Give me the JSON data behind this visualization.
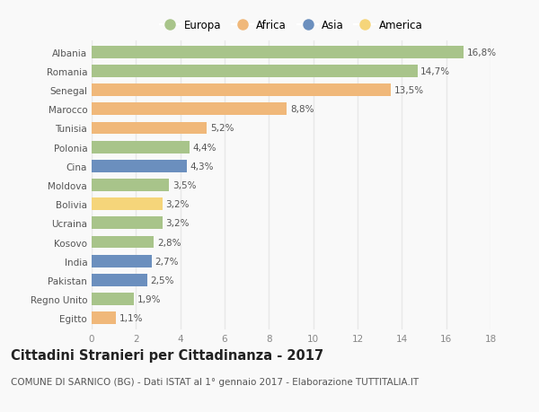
{
  "countries": [
    "Albania",
    "Romania",
    "Senegal",
    "Marocco",
    "Tunisia",
    "Polonia",
    "Cina",
    "Moldova",
    "Bolivia",
    "Ucraina",
    "Kosovo",
    "India",
    "Pakistan",
    "Regno Unito",
    "Egitto"
  ],
  "values": [
    16.8,
    14.7,
    13.5,
    8.8,
    5.2,
    4.4,
    4.3,
    3.5,
    3.2,
    3.2,
    2.8,
    2.7,
    2.5,
    1.9,
    1.1
  ],
  "continents": [
    "Europa",
    "Europa",
    "Africa",
    "Africa",
    "Africa",
    "Europa",
    "Asia",
    "Europa",
    "America",
    "Europa",
    "Europa",
    "Asia",
    "Asia",
    "Europa",
    "Africa"
  ],
  "continent_colors": {
    "Europa": "#a8c48a",
    "Africa": "#f0b87a",
    "Asia": "#6b8fbe",
    "America": "#f5d57a"
  },
  "legend_order": [
    "Europa",
    "Africa",
    "Asia",
    "America"
  ],
  "title": "Cittadini Stranieri per Cittadinanza - 2017",
  "subtitle": "COMUNE DI SARNICO (BG) - Dati ISTAT al 1° gennaio 2017 - Elaborazione TUTTITALIA.IT",
  "xlim": [
    0,
    18
  ],
  "xticks": [
    0,
    2,
    4,
    6,
    8,
    10,
    12,
    14,
    16,
    18
  ],
  "background_color": "#f9f9f9",
  "grid_color": "#e8e8e8",
  "bar_height": 0.65,
  "title_fontsize": 10.5,
  "subtitle_fontsize": 7.5,
  "label_fontsize": 7.5,
  "tick_fontsize": 7.5,
  "legend_fontsize": 8.5
}
